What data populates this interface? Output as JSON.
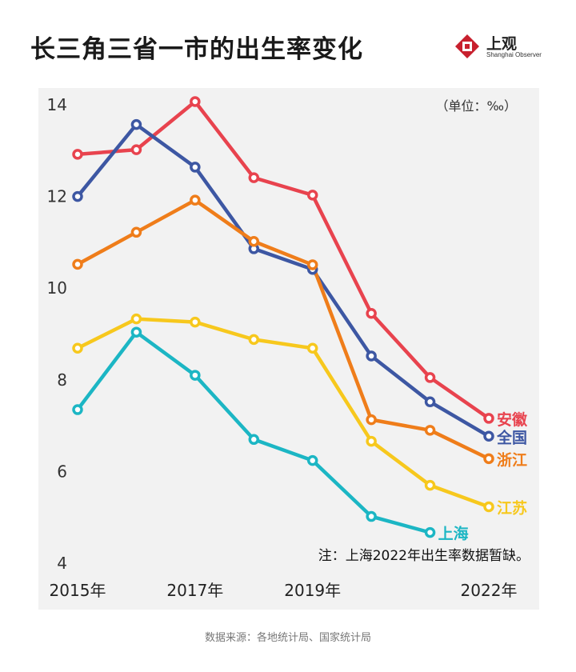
{
  "title": "长三角三省一市的出生率变化",
  "brand": {
    "name": "上观",
    "subtitle": "Shanghai Observer",
    "color": "#c8202e"
  },
  "source": "数据来源：各地统计局、国家统计局",
  "chart_data": {
    "type": "line",
    "unit_label": "（单位：‰）",
    "note": "注：上海2022年出生率数据暂缺。",
    "x": [
      2015,
      2016,
      2017,
      2018,
      2019,
      2020,
      2021,
      2022
    ],
    "x_tick_labels": [
      {
        "x": 2015,
        "label": "2015年"
      },
      {
        "x": 2017,
        "label": "2017年"
      },
      {
        "x": 2019,
        "label": "2019年"
      },
      {
        "x": 2022,
        "label": "2022年"
      }
    ],
    "ylim": [
      4,
      14
    ],
    "y_ticks": [
      4,
      6,
      8,
      10,
      12,
      14
    ],
    "grid": false,
    "series": [
      {
        "name": "安徽",
        "color": "#e8434e",
        "values": [
          12.92,
          13.02,
          14.07,
          12.41,
          12.03,
          9.45,
          8.05,
          7.16
        ]
      },
      {
        "name": "全国",
        "color": "#3d57a3",
        "values": [
          12.0,
          13.57,
          12.64,
          10.86,
          10.41,
          8.52,
          7.52,
          6.77
        ]
      },
      {
        "name": "浙江",
        "color": "#ef7d1a",
        "values": [
          10.52,
          11.22,
          11.92,
          11.02,
          10.51,
          7.13,
          6.9,
          6.28
        ]
      },
      {
        "name": "江苏",
        "color": "#f7c81d",
        "values": [
          8.69,
          9.33,
          9.26,
          8.88,
          8.69,
          6.66,
          5.7,
          5.23
        ]
      },
      {
        "name": "上海",
        "color": "#1cb6c4",
        "values": [
          7.35,
          9.04,
          8.1,
          6.7,
          6.24,
          5.02,
          4.67,
          null
        ]
      }
    ]
  }
}
